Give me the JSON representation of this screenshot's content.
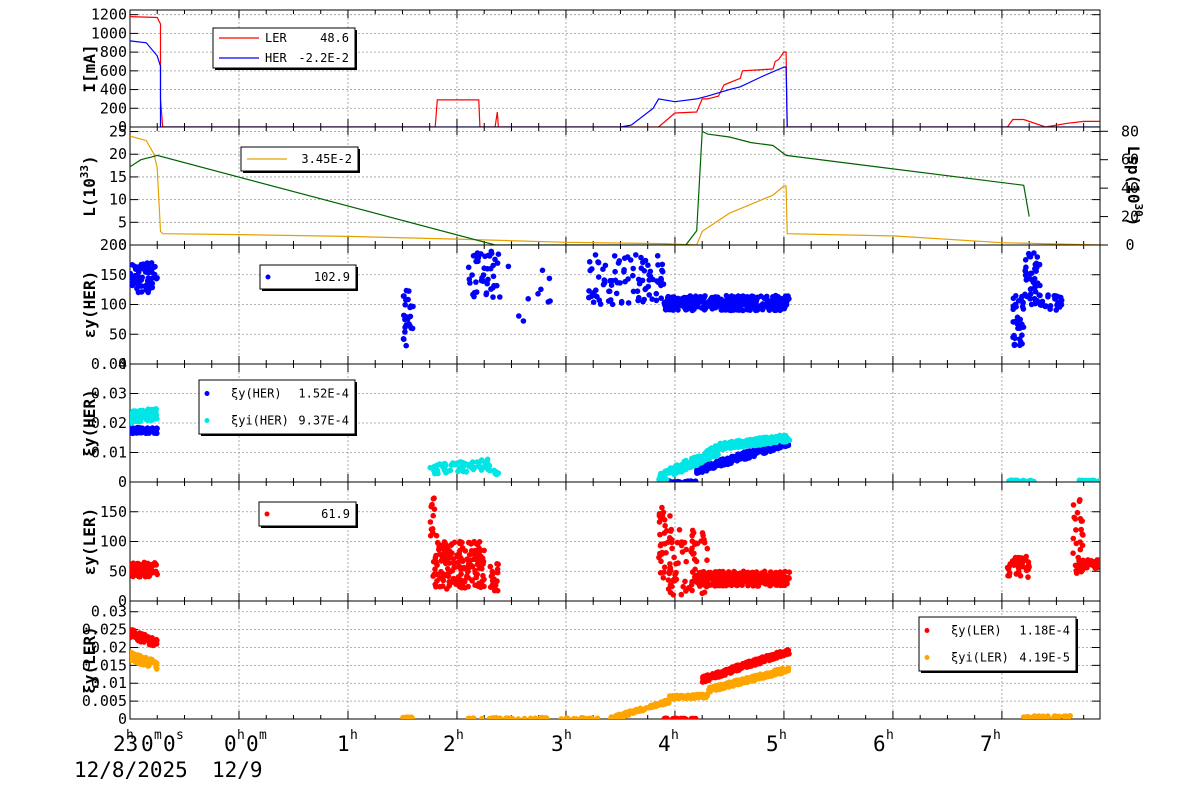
{
  "x_axis": {
    "labels": [
      {
        "text": "23",
        "sup": "h",
        "t": -1
      },
      {
        "text": "0",
        "sup": "m",
        "t": -1,
        "join": true
      },
      {
        "text": "0",
        "sup": "s",
        "t": -1,
        "join": true
      },
      {
        "text": "0",
        "sup": "h",
        "t": 0
      },
      {
        "text": "0",
        "sup": "m",
        "t": 0,
        "join": true
      },
      {
        "text": "1",
        "sup": "h",
        "t": 1
      },
      {
        "text": "2",
        "sup": "h",
        "t": 2
      },
      {
        "text": "3",
        "sup": "h",
        "t": 3
      },
      {
        "text": "4",
        "sup": "h",
        "t": 4
      },
      {
        "text": "5",
        "sup": "h",
        "t": 5
      },
      {
        "text": "6",
        "sup": "h",
        "t": 6
      },
      {
        "text": "7",
        "sup": "h",
        "t": 7
      }
    ],
    "date_left": "12/8/2025",
    "date_right": "12/9",
    "range_hours": [
      -1.0,
      7.9
    ]
  },
  "chart_data": [
    {
      "id": "current",
      "type": "line",
      "ylabel": "I[mA]",
      "ylim": [
        0,
        1250
      ],
      "yticks": [
        "0",
        "200",
        "400",
        "600",
        "800",
        "1000",
        "1200"
      ],
      "legend": [
        {
          "name": "LER",
          "value": "48.6",
          "color": "#ff0000"
        },
        {
          "name": "HER",
          "value": "-2.2E-2",
          "color": "#0000ff"
        }
      ],
      "series": [
        {
          "name": "LER",
          "color": "#ff0000",
          "x": [
            -1.0,
            -0.75,
            -0.72,
            -0.72,
            -0.7,
            -0.7,
            0.6,
            1.55,
            1.8,
            1.82,
            2.2,
            2.21,
            2.35,
            2.37,
            2.38,
            2.4,
            3.8,
            3.85,
            4.0,
            4.2,
            4.25,
            4.3,
            4.4,
            4.45,
            4.6,
            4.62,
            4.9,
            4.92,
            4.95,
            5.0,
            5.02,
            5.03,
            6.5,
            7.05,
            7.1,
            7.2,
            7.4,
            7.6,
            7.75,
            7.9
          ],
          "y": [
            1180,
            1170,
            1100,
            300,
            0,
            0,
            0,
            0,
            0,
            290,
            290,
            0,
            0,
            160,
            0,
            0,
            0,
            0,
            150,
            160,
            300,
            300,
            330,
            450,
            520,
            600,
            620,
            700,
            720,
            800,
            800,
            0,
            0,
            0,
            80,
            80,
            0,
            40,
            60,
            60
          ]
        },
        {
          "name": "HER",
          "color": "#0000ff",
          "x": [
            -1.0,
            -0.85,
            -0.75,
            -0.72,
            -0.72,
            -0.7,
            1.5,
            3.5,
            3.6,
            3.8,
            3.85,
            4.0,
            4.2,
            4.3,
            4.5,
            4.6,
            4.8,
            5.0,
            5.02,
            5.03,
            7.9
          ],
          "y": [
            920,
            900,
            760,
            650,
            0,
            0,
            0,
            0,
            20,
            200,
            300,
            270,
            300,
            330,
            400,
            430,
            540,
            640,
            640,
            0,
            0
          ]
        }
      ]
    },
    {
      "id": "luminosity",
      "type": "line",
      "ylabel": "L(10",
      "ylabel_sup": "33",
      "ylabel_end": ")",
      "ylim": [
        0,
        26
      ],
      "yticks": [
        "0",
        "5",
        "10",
        "15",
        "20",
        "25"
      ],
      "y2label": "Lsp(10",
      "y2label_sup": "30",
      "y2label_end": ")",
      "y2lim": [
        0,
        83
      ],
      "y2ticks": [
        "0",
        "20",
        "40",
        "60",
        "80"
      ],
      "legend": [
        {
          "name": "",
          "value": "3.45E-2",
          "color": "#e6a000"
        }
      ],
      "series": [
        {
          "name": "",
          "color": "#e6a000",
          "x": [
            -1.0,
            -0.85,
            -0.78,
            -0.75,
            -0.72,
            -0.7,
            0.0,
            1.0,
            2.0,
            3.0,
            3.9,
            4.2,
            4.25,
            4.5,
            4.7,
            4.9,
            5.0,
            5.02,
            5.03,
            6.0,
            7.0,
            7.9
          ],
          "y": [
            24,
            23,
            20,
            17,
            3,
            2.5,
            2.3,
            1.9,
            1.3,
            0.6,
            0.3,
            0,
            3,
            7,
            9,
            11,
            13,
            13,
            2.5,
            2,
            0.5,
            0
          ]
        },
        {
          "name": "",
          "color": "#006400",
          "axis": "y2",
          "x": [
            -1.0,
            -0.9,
            -0.8,
            -0.75,
            2.35,
            4.1,
            4.2,
            4.25,
            4.3,
            4.5,
            4.7,
            4.9,
            5.02,
            7.2,
            7.25
          ],
          "y": [
            55,
            60,
            62,
            63,
            0,
            0,
            10,
            80,
            78,
            76,
            72,
            70,
            63,
            42,
            20
          ]
        }
      ]
    },
    {
      "id": "xi_y_her_pct",
      "type": "scatter",
      "ylabel": "εy(HER)",
      "ylim": [
        0,
        200
      ],
      "yticks": [
        "0",
        "50",
        "100",
        "150",
        "200"
      ],
      "legend": [
        {
          "name": "",
          "value": "102.9",
          "color": "#0000ff",
          "marker": true
        }
      ],
      "series": [
        {
          "name": "",
          "color": "#0000ff",
          "clusters": [
            {
              "x0": -1.0,
              "x1": -0.75,
              "y0": 120,
              "y1": 170,
              "n": 70
            },
            {
              "x0": 1.5,
              "x1": 1.6,
              "y0": 30,
              "y1": 125,
              "n": 25
            },
            {
              "x0": 2.1,
              "x1": 2.4,
              "y0": 110,
              "y1": 190,
              "n": 45
            },
            {
              "x0": 2.45,
              "x1": 2.95,
              "y0": 60,
              "y1": 165,
              "n": 10
            },
            {
              "x0": 3.2,
              "x1": 3.9,
              "y0": 100,
              "y1": 185,
              "n": 90
            },
            {
              "x0": 3.9,
              "x1": 5.05,
              "y0": 90,
              "y1": 115,
              "n": 380
            },
            {
              "x0": 7.1,
              "x1": 7.2,
              "y0": 30,
              "y1": 115,
              "n": 35
            },
            {
              "x0": 7.2,
              "x1": 7.35,
              "y0": 100,
              "y1": 190,
              "n": 45
            },
            {
              "x0": 7.35,
              "x1": 7.55,
              "y0": 90,
              "y1": 120,
              "n": 22
            }
          ]
        }
      ]
    },
    {
      "id": "xi_y_her",
      "type": "scatter",
      "ylabel": "ξy(HER)",
      "ylim": [
        0,
        0.04
      ],
      "yticks": [
        "0",
        "0.01",
        "0.02",
        "0.03",
        "0.04"
      ],
      "legend": [
        {
          "name": "ξy(HER)",
          "value": "1.52E-4",
          "color": "#0000ff",
          "marker": true
        },
        {
          "name": "ξyi(HER)",
          "value": "9.37E-4",
          "color": "#00e5e5",
          "marker": true
        }
      ],
      "series": [
        {
          "name": "ξy(HER)",
          "color": "#0000ff",
          "bands": [
            {
              "x0": -1.0,
              "x1": -0.75,
              "ya": 0.0175,
              "yb": 0.0175,
              "j": 0.001,
              "n": 70
            },
            {
              "x0": 3.9,
              "x1": 4.2,
              "ya": 0.0,
              "yb": 0.0,
              "j": 0.0003,
              "n": 30
            },
            {
              "x0": 4.2,
              "x1": 5.05,
              "ya": 0.004,
              "yb": 0.0135,
              "j": 0.0012,
              "n": 260
            }
          ]
        },
        {
          "name": "ξyi(HER)",
          "color": "#00e5e5",
          "bands": [
            {
              "x0": -1.0,
              "x1": -0.75,
              "ya": 0.022,
              "yb": 0.023,
              "j": 0.002,
              "n": 70
            },
            {
              "x0": 1.75,
              "x1": 2.3,
              "ya": 0.004,
              "yb": 0.006,
              "j": 0.0018,
              "n": 70
            },
            {
              "x0": 2.3,
              "x1": 2.38,
              "ya": 0.003,
              "yb": 0.003,
              "j": 0.0012,
              "n": 8
            },
            {
              "x0": 3.85,
              "x1": 4.4,
              "ya": 0.001,
              "yb": 0.011,
              "j": 0.0018,
              "n": 150
            },
            {
              "x0": 4.4,
              "x1": 5.05,
              "ya": 0.012,
              "yb": 0.015,
              "j": 0.0012,
              "n": 180
            },
            {
              "x0": 7.05,
              "x1": 7.3,
              "ya": 0.0003,
              "yb": 0.0003,
              "j": 0.0003,
              "n": 25
            },
            {
              "x0": 7.7,
              "x1": 7.9,
              "ya": 0.0003,
              "yb": 0.0003,
              "j": 0.0003,
              "n": 25
            }
          ]
        }
      ]
    },
    {
      "id": "xi_y_ler_pct",
      "type": "scatter",
      "ylabel": "εy(LER)",
      "ylim": [
        0,
        200
      ],
      "yticks": [
        "0",
        "50",
        "100",
        "150"
      ],
      "legend": [
        {
          "name": "",
          "value": "61.9",
          "color": "#ff0000",
          "marker": true
        }
      ],
      "series": [
        {
          "name": "",
          "color": "#ff0000",
          "clusters": [
            {
              "x0": -1.0,
              "x1": -0.75,
              "y0": 40,
              "y1": 65,
              "n": 70
            },
            {
              "x0": 1.75,
              "x1": 1.82,
              "y0": 100,
              "y1": 175,
              "n": 12
            },
            {
              "x0": 1.78,
              "x1": 2.25,
              "y0": 20,
              "y1": 100,
              "n": 170
            },
            {
              "x0": 2.3,
              "x1": 2.38,
              "y0": 15,
              "y1": 65,
              "n": 18
            },
            {
              "x0": 3.85,
              "x1": 4.0,
              "y0": 20,
              "y1": 165,
              "n": 40
            },
            {
              "x0": 3.95,
              "x1": 4.3,
              "y0": 10,
              "y1": 120,
              "n": 70
            },
            {
              "x0": 4.2,
              "x1": 5.05,
              "y0": 25,
              "y1": 50,
              "n": 260
            },
            {
              "x0": 7.05,
              "x1": 7.25,
              "y0": 40,
              "y1": 75,
              "n": 40
            },
            {
              "x0": 7.65,
              "x1": 7.75,
              "y0": 40,
              "y1": 180,
              "n": 30
            },
            {
              "x0": 7.7,
              "x1": 7.9,
              "y0": 55,
              "y1": 70,
              "n": 40
            }
          ]
        }
      ]
    },
    {
      "id": "xi_y_ler",
      "type": "scatter",
      "ylabel": "ξy(LER)",
      "ylim": [
        0,
        0.033
      ],
      "yticks": [
        "0",
        "0.005",
        "0.01",
        "0.015",
        "0.02",
        "0.025",
        "0.03"
      ],
      "legend": [
        {
          "name": "ξy(LER)",
          "value": "1.18E-4",
          "color": "#ff0000",
          "marker": true
        },
        {
          "name": "ξyi(LER)",
          "value": "4.19E-5",
          "color": "#ffa500",
          "marker": true
        }
      ],
      "series": [
        {
          "name": "ξy(LER)",
          "color": "#ff0000",
          "bands": [
            {
              "x0": -1.0,
              "x1": -0.75,
              "ya": 0.024,
              "yb": 0.021,
              "j": 0.0012,
              "n": 70
            },
            {
              "x0": 3.9,
              "x1": 4.2,
              "ya": 0.0,
              "yb": 0.0,
              "j": 0.0002,
              "n": 30
            },
            {
              "x0": 4.25,
              "x1": 5.05,
              "ya": 0.011,
              "yb": 0.019,
              "j": 0.0008,
              "n": 260
            }
          ]
        },
        {
          "name": "ξyi(LER)",
          "color": "#ffa500",
          "bands": [
            {
              "x0": -1.0,
              "x1": -0.75,
              "ya": 0.0175,
              "yb": 0.015,
              "j": 0.0012,
              "n": 70
            },
            {
              "x0": 1.5,
              "x1": 1.6,
              "ya": 0.0003,
              "yb": 0.0003,
              "j": 0.0002,
              "n": 12
            },
            {
              "x0": 2.1,
              "x1": 3.3,
              "ya": 0.0002,
              "yb": 0.0002,
              "j": 0.0002,
              "n": 45
            },
            {
              "x0": 3.4,
              "x1": 3.95,
              "ya": 0.0,
              "yb": 0.005,
              "j": 0.0005,
              "n": 120
            },
            {
              "x0": 3.95,
              "x1": 4.3,
              "ya": 0.006,
              "yb": 0.0065,
              "j": 0.0005,
              "n": 80
            },
            {
              "x0": 4.3,
              "x1": 5.05,
              "ya": 0.008,
              "yb": 0.014,
              "j": 0.0007,
              "n": 220
            },
            {
              "x0": 7.2,
              "x1": 7.65,
              "ya": 0.0005,
              "yb": 0.0007,
              "j": 0.0003,
              "n": 55
            }
          ]
        }
      ]
    }
  ]
}
